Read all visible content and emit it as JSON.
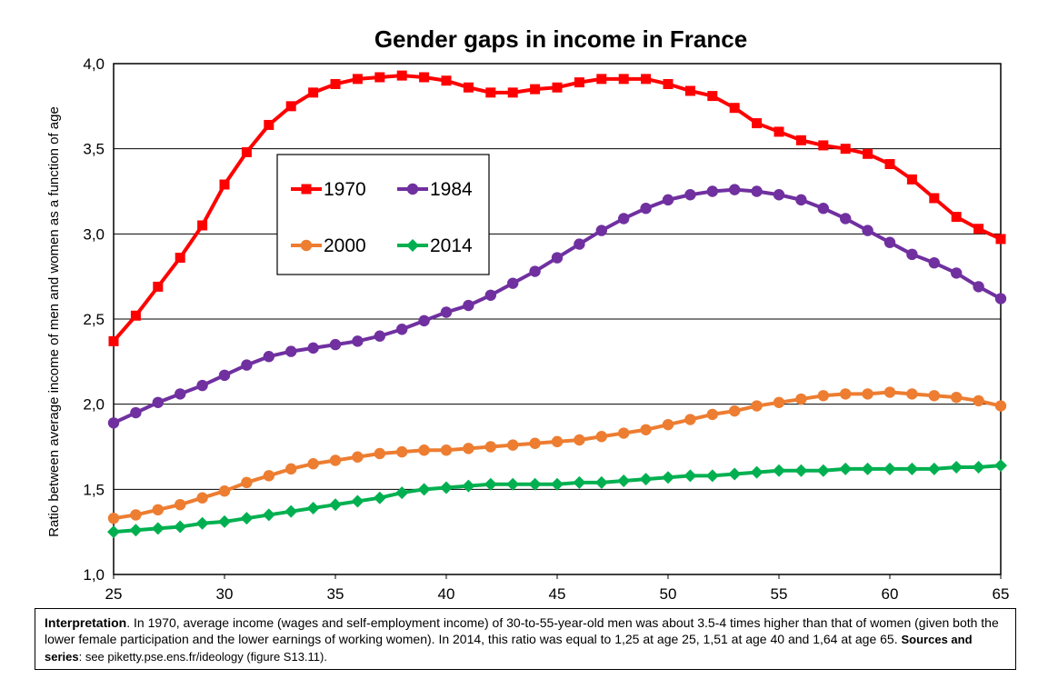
{
  "chart_data": {
    "type": "line",
    "title": "Gender gaps in income in France",
    "xlabel": "",
    "ylabel": "Ratio between average income of men and women as a function of age",
    "xlim": [
      25,
      65
    ],
    "ylim": [
      1.0,
      4.0
    ],
    "x_ticks": [
      "25",
      "30",
      "35",
      "40",
      "45",
      "50",
      "55",
      "60",
      "65"
    ],
    "y_ticks": [
      "1,0",
      "1,5",
      "2,0",
      "2,5",
      "3,0",
      "3,5",
      "4,0"
    ],
    "grid": "horizontal",
    "legend_placement": "top-left (inside plot)",
    "x": [
      25,
      26,
      27,
      28,
      29,
      30,
      31,
      32,
      33,
      34,
      35,
      36,
      37,
      38,
      39,
      40,
      41,
      42,
      43,
      44,
      45,
      46,
      47,
      48,
      49,
      50,
      51,
      52,
      53,
      54,
      55,
      56,
      57,
      58,
      59,
      60,
      61,
      62,
      63,
      64,
      65
    ],
    "series": [
      {
        "name": "1970",
        "color": "#ff0000",
        "marker": "square",
        "values": [
          2.37,
          2.52,
          2.69,
          2.86,
          3.05,
          3.29,
          3.48,
          3.64,
          3.75,
          3.83,
          3.88,
          3.91,
          3.92,
          3.93,
          3.92,
          3.9,
          3.86,
          3.83,
          3.83,
          3.85,
          3.86,
          3.89,
          3.91,
          3.91,
          3.91,
          3.88,
          3.84,
          3.81,
          3.74,
          3.65,
          3.6,
          3.55,
          3.52,
          3.5,
          3.47,
          3.41,
          3.32,
          3.21,
          3.1,
          3.03,
          2.97
        ]
      },
      {
        "name": "1984",
        "color": "#7030a0",
        "marker": "circle",
        "values": [
          1.89,
          1.95,
          2.01,
          2.06,
          2.11,
          2.17,
          2.23,
          2.28,
          2.31,
          2.33,
          2.35,
          2.37,
          2.4,
          2.44,
          2.49,
          2.54,
          2.58,
          2.64,
          2.71,
          2.78,
          2.86,
          2.94,
          3.02,
          3.09,
          3.15,
          3.2,
          3.23,
          3.25,
          3.26,
          3.25,
          3.23,
          3.2,
          3.15,
          3.09,
          3.02,
          2.95,
          2.88,
          2.83,
          2.77,
          2.69,
          2.62
        ]
      },
      {
        "name": "2000",
        "color": "#ed7d31",
        "marker": "circle",
        "values": [
          1.33,
          1.35,
          1.38,
          1.41,
          1.45,
          1.49,
          1.54,
          1.58,
          1.62,
          1.65,
          1.67,
          1.69,
          1.71,
          1.72,
          1.73,
          1.73,
          1.74,
          1.75,
          1.76,
          1.77,
          1.78,
          1.79,
          1.81,
          1.83,
          1.85,
          1.88,
          1.91,
          1.94,
          1.96,
          1.99,
          2.01,
          2.03,
          2.05,
          2.06,
          2.06,
          2.07,
          2.06,
          2.05,
          2.04,
          2.02,
          1.99
        ]
      },
      {
        "name": "2014",
        "color": "#00b050",
        "marker": "diamond",
        "values": [
          1.25,
          1.26,
          1.27,
          1.28,
          1.3,
          1.31,
          1.33,
          1.35,
          1.37,
          1.39,
          1.41,
          1.43,
          1.45,
          1.48,
          1.5,
          1.51,
          1.52,
          1.53,
          1.53,
          1.53,
          1.53,
          1.54,
          1.54,
          1.55,
          1.56,
          1.57,
          1.58,
          1.58,
          1.59,
          1.6,
          1.61,
          1.61,
          1.61,
          1.62,
          1.62,
          1.62,
          1.62,
          1.62,
          1.63,
          1.63,
          1.64
        ]
      }
    ]
  },
  "note": {
    "interp_label": "Interpretation",
    "interp_text": ". In 1970, average income (wages and self-employment income) of 30-to-55-year-old men was about 3.5-4 times higher than that of women (given both the lower female participation and the lower earnings of working women). In 2014, this ratio was equal to 1,25 at age 25, 1,51 at age 40 and 1,64 at age 65. ",
    "sources_label": "Sources and series",
    "sources_text": ": see piketty.pse.ens.fr/ideology (figure S13.11)."
  }
}
